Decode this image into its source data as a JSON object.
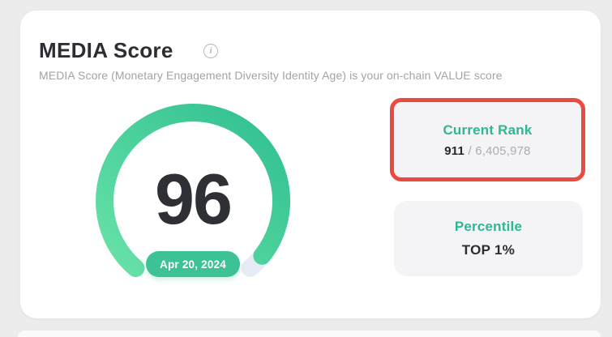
{
  "header": {
    "title": "MEDIA Score",
    "info_icon_glyph": "i",
    "subtitle": "MEDIA Score (Monetary Engagement Diversity Identity Age) is your on-chain VALUE score"
  },
  "chart_data": {
    "type": "gauge",
    "title": "MEDIA Score",
    "value": 96,
    "max": 100,
    "score_label": "96",
    "date_badge": "Apr 20, 2024"
  },
  "rank_panel": {
    "label": "Current Rank",
    "value": "911",
    "separator": " / ",
    "total": "6,405,978",
    "highlighted": true
  },
  "percentile_panel": {
    "label": "Percentile",
    "value": "TOP 1%"
  },
  "colors": {
    "accent_teal": "#2db795",
    "gauge_gradient_start": "#68e2a8",
    "gauge_gradient_end": "#2fbf90",
    "gauge_track": "#e7ebf6",
    "badge_bg": "#3cc295",
    "highlight_red": "#ea4a40",
    "panel_bg": "#f4f4f6",
    "score_text": "#2e3035",
    "page_bg": "#ececec"
  }
}
